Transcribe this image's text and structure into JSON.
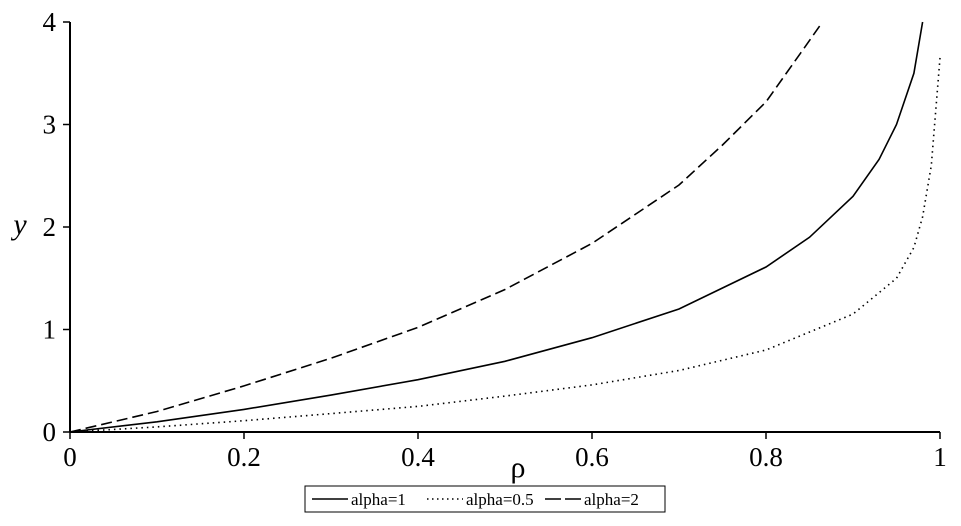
{
  "chart_data": {
    "type": "line",
    "title": "",
    "xlabel": "ρ",
    "ylabel": "y",
    "xlim": [
      0,
      1
    ],
    "ylim": [
      0,
      4
    ],
    "x_ticks": [
      0,
      0.2,
      0.4,
      0.6,
      0.8,
      1
    ],
    "x_tick_labels": [
      "0",
      "0.2",
      "0.4",
      "0.6",
      "0.8",
      "1"
    ],
    "y_ticks": [
      0,
      1,
      2,
      3,
      4
    ],
    "y_tick_labels": [
      "0",
      "1",
      "2",
      "3",
      "4"
    ],
    "grid": false,
    "legend_position": "bottom-center",
    "series": [
      {
        "name": "alpha=1",
        "style": "solid",
        "points": [
          [
            0,
            0
          ],
          [
            0.1,
            0.1
          ],
          [
            0.2,
            0.22
          ],
          [
            0.3,
            0.36
          ],
          [
            0.4,
            0.51
          ],
          [
            0.5,
            0.69
          ],
          [
            0.6,
            0.92
          ],
          [
            0.7,
            1.2
          ],
          [
            0.8,
            1.61
          ],
          [
            0.85,
            1.9
          ],
          [
            0.9,
            2.3
          ],
          [
            0.93,
            2.66
          ],
          [
            0.95,
            3.0
          ],
          [
            0.97,
            3.5
          ],
          [
            0.98,
            4.0
          ]
        ]
      },
      {
        "name": "alpha=0.5",
        "style": "dotted",
        "points": [
          [
            0,
            0
          ],
          [
            0.1,
            0.05
          ],
          [
            0.2,
            0.11
          ],
          [
            0.3,
            0.18
          ],
          [
            0.4,
            0.25
          ],
          [
            0.5,
            0.35
          ],
          [
            0.6,
            0.46
          ],
          [
            0.7,
            0.6
          ],
          [
            0.8,
            0.8
          ],
          [
            0.9,
            1.15
          ],
          [
            0.95,
            1.5
          ],
          [
            0.97,
            1.8
          ],
          [
            0.98,
            2.1
          ],
          [
            0.99,
            2.6
          ],
          [
            1.0,
            3.65
          ]
        ]
      },
      {
        "name": "alpha=2",
        "style": "dashed",
        "points": [
          [
            0,
            0
          ],
          [
            0.1,
            0.2
          ],
          [
            0.2,
            0.45
          ],
          [
            0.3,
            0.72
          ],
          [
            0.4,
            1.02
          ],
          [
            0.5,
            1.39
          ],
          [
            0.6,
            1.84
          ],
          [
            0.7,
            2.41
          ],
          [
            0.75,
            2.8
          ],
          [
            0.8,
            3.22
          ],
          [
            0.84,
            3.7
          ],
          [
            0.865,
            4.0
          ]
        ]
      }
    ]
  }
}
